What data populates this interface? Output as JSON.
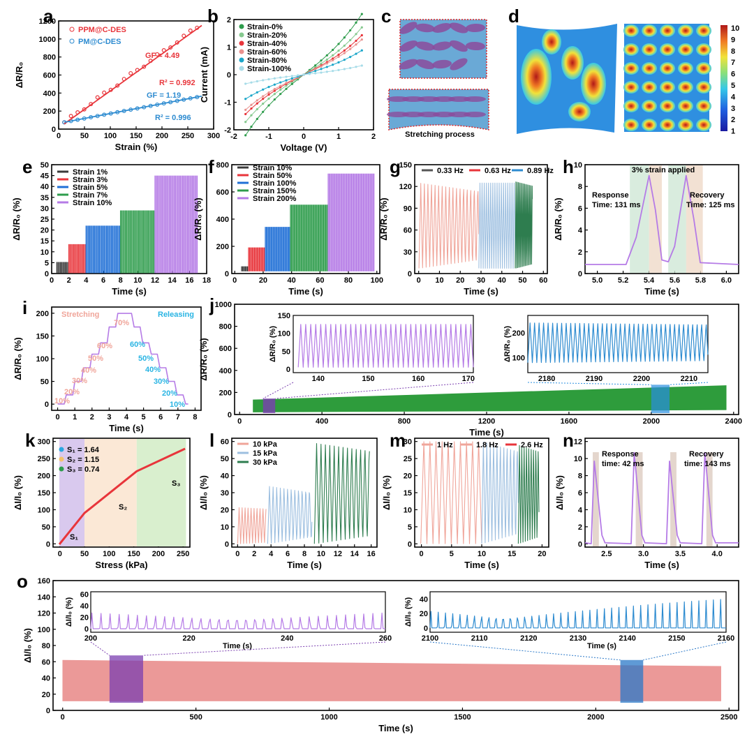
{
  "panels": {
    "a": {
      "label": "a",
      "xlabel": "Strain (%)",
      "ylabel": "ΔR/R₀",
      "xticks": [
        "0",
        "50",
        "100",
        "150",
        "200",
        "250",
        "300"
      ],
      "yticks": [
        "0",
        "200",
        "400",
        "600",
        "800",
        "1000",
        "1200"
      ],
      "legend": [
        "PPM@C-DES",
        "PM@C-DES"
      ],
      "gf1": "GF = 4.49",
      "r1": "R² = 0.992",
      "gf2": "GF = 1.19",
      "r2": "R² = 0.996"
    },
    "b": {
      "label": "b",
      "xlabel": "Voltage (V)",
      "ylabel": "Current (mA)",
      "xticks": [
        "-2",
        "-1",
        "0",
        "1",
        "2"
      ],
      "yticks": [
        "-2",
        "-1",
        "0",
        "1",
        "2"
      ],
      "legend": [
        "Strain-0%",
        "Strain-20%",
        "Strain-40%",
        "Strain-60%",
        "Strain-80%",
        "Strain-100%"
      ]
    },
    "c": {
      "label": "c",
      "caption": "Stretching process"
    },
    "d": {
      "label": "d",
      "cbar": [
        "10",
        "9",
        "8",
        "7",
        "6",
        "5",
        "4",
        "3",
        "2",
        "1"
      ]
    },
    "e": {
      "label": "e",
      "xlabel": "Time (s)",
      "ylabel": "ΔR/R₀ (%)",
      "xticks": [
        "0",
        "2",
        "4",
        "6",
        "8",
        "10",
        "12",
        "14",
        "16",
        "18"
      ],
      "yticks": [
        "0",
        "5",
        "10",
        "15",
        "20",
        "25",
        "30",
        "35",
        "40",
        "45",
        "50"
      ],
      "legend": [
        "Strain 1%",
        "Strain 3%",
        "Strain 5%",
        "Strain 7%",
        "Strain 10%"
      ]
    },
    "f": {
      "label": "f",
      "xlabel": "Time (s)",
      "ylabel": "ΔR/R₀ (%)",
      "xticks": [
        "0",
        "20",
        "40",
        "60",
        "80",
        "100"
      ],
      "yticks": [
        "0",
        "200",
        "400",
        "600",
        "800"
      ],
      "legend": [
        "Strain 10%",
        "Strain 50%",
        "Strain 100%",
        "Strain 150%",
        "Strain 200%"
      ]
    },
    "g": {
      "label": "g",
      "xlabel": "Time (s)",
      "ylabel": "ΔR/R₀ (%)",
      "xticks": [
        "0",
        "10",
        "20",
        "30",
        "40",
        "50",
        "60"
      ],
      "yticks": [
        "0",
        "30",
        "60",
        "90",
        "120",
        "150"
      ],
      "legend": [
        "0.33 Hz",
        "0.63 Hz",
        "0.89 Hz"
      ]
    },
    "h": {
      "label": "h",
      "xlabel": "Time (s)",
      "ylabel": "ΔR/R₀ (%)",
      "xticks": [
        "5.0",
        "5.2",
        "5.4",
        "5.6",
        "5.8",
        "6.0"
      ],
      "yticks": [
        "0",
        "2",
        "4",
        "6",
        "8",
        "10"
      ],
      "title": "3% strain applied",
      "resp": "Response",
      "resp_t": "Time: 131 ms",
      "rec": "Recovery",
      "rec_t": "Time: 125 ms"
    },
    "i": {
      "label": "i",
      "xlabel": "Time (s)",
      "ylabel": "ΔR/R₀ (%)",
      "xticks": [
        "0",
        "1",
        "2",
        "3",
        "4",
        "5",
        "6",
        "7",
        "8"
      ],
      "yticks": [
        "0",
        "50",
        "100",
        "150",
        "200"
      ],
      "stretch": "Stretching",
      "release": "Releasing",
      "steps": [
        "10%",
        "20%",
        "30%",
        "40%",
        "50%",
        "60%",
        "70%"
      ],
      "rsteps": [
        "60%",
        "50%",
        "40%",
        "30%",
        "20%",
        "10%"
      ]
    },
    "j": {
      "label": "j",
      "xlabel": "Time (s)",
      "ylabel": "ΔR/R₀ (%)",
      "xticks": [
        "0",
        "400",
        "800",
        "1200",
        "1600",
        "2000",
        "2400"
      ],
      "yticks": [
        "0",
        "200",
        "400",
        "600",
        "800",
        "1000"
      ],
      "in1_x": [
        "140",
        "150",
        "160",
        "170"
      ],
      "in1_y": [
        "0",
        "25",
        "50",
        "75",
        "100",
        "125",
        "150"
      ],
      "in2_x": [
        "2180",
        "2190",
        "2200",
        "2210"
      ],
      "in2_y": [
        "100",
        "200"
      ],
      "inset_ylabel": "ΔR/R₀ (%)"
    },
    "k": {
      "label": "k",
      "xlabel": "Stress (kPa)",
      "ylabel": "ΔI/I₀ (%)",
      "xticks": [
        "0",
        "50",
        "100",
        "150",
        "200",
        "250"
      ],
      "yticks": [
        "0",
        "50",
        "100",
        "150",
        "200",
        "250",
        "300"
      ],
      "legend": [
        "S₁ = 1.64",
        "S₂ = 1.15",
        "S₃ = 0.74"
      ],
      "s1": "S₁",
      "s2": "S₂",
      "s3": "S₃"
    },
    "l": {
      "label": "l",
      "xlabel": "Time (s)",
      "ylabel": "ΔI/I₀ (%)",
      "xticks": [
        "0",
        "2",
        "4",
        "6",
        "8",
        "10",
        "12",
        "14",
        "16"
      ],
      "yticks": [
        "0",
        "10",
        "20",
        "30",
        "40",
        "50",
        "60"
      ],
      "legend": [
        "10 kPa",
        "15 kPa",
        "30 kPa"
      ]
    },
    "m": {
      "label": "m",
      "xlabel": "Time (s)",
      "ylabel": "ΔI/I₀ (%)",
      "xticks": [
        "0",
        "5",
        "10",
        "15",
        "20"
      ],
      "yticks": [
        "0",
        "5",
        "10",
        "15",
        "20",
        "25",
        "30"
      ],
      "legend": [
        "1 Hz",
        "1.8 Hz",
        "2.6 Hz"
      ]
    },
    "n": {
      "label": "n",
      "xlabel": "Time (s)",
      "ylabel": "ΔI/I₀ (%)",
      "xticks": [
        "2.5",
        "3.0",
        "3.5",
        "4.0"
      ],
      "yticks": [
        "0",
        "2",
        "4",
        "6",
        "8",
        "10",
        "12"
      ],
      "resp": "Response",
      "resp_t": "time: 42 ms",
      "rec": "Recovery",
      "rec_t": "time: 143 ms"
    },
    "o": {
      "label": "o",
      "xlabel": "Time (s)",
      "ylabel": "ΔI/I₀ (%)",
      "xticks": [
        "0",
        "500",
        "1000",
        "1500",
        "2000",
        "2500"
      ],
      "yticks": [
        "0",
        "20",
        "40",
        "60",
        "80",
        "100",
        "120",
        "140",
        "160"
      ],
      "in1_x": [
        "200",
        "220",
        "240",
        "260"
      ],
      "in2_x": [
        "2100",
        "2110",
        "2120",
        "2130",
        "2140",
        "2150",
        "2160"
      ],
      "in_y": [
        "0",
        "20",
        "40",
        "60"
      ],
      "in2_y": [
        "0",
        "20",
        "40"
      ],
      "inset_xlabel": "Time (s)",
      "inset_ylabel": "ΔI/I₀ (%)"
    }
  },
  "colors": {
    "red": "#e8353b",
    "blue": "#2d8bd0",
    "purple": "#b57be6",
    "green": "#2e9c4c",
    "pink": "#e9928f",
    "lightblue": "#9dbfe0",
    "dkgreen": "#2e7d4f",
    "salmon": "#f0a59a",
    "cyan": "#29b4e3"
  }
}
